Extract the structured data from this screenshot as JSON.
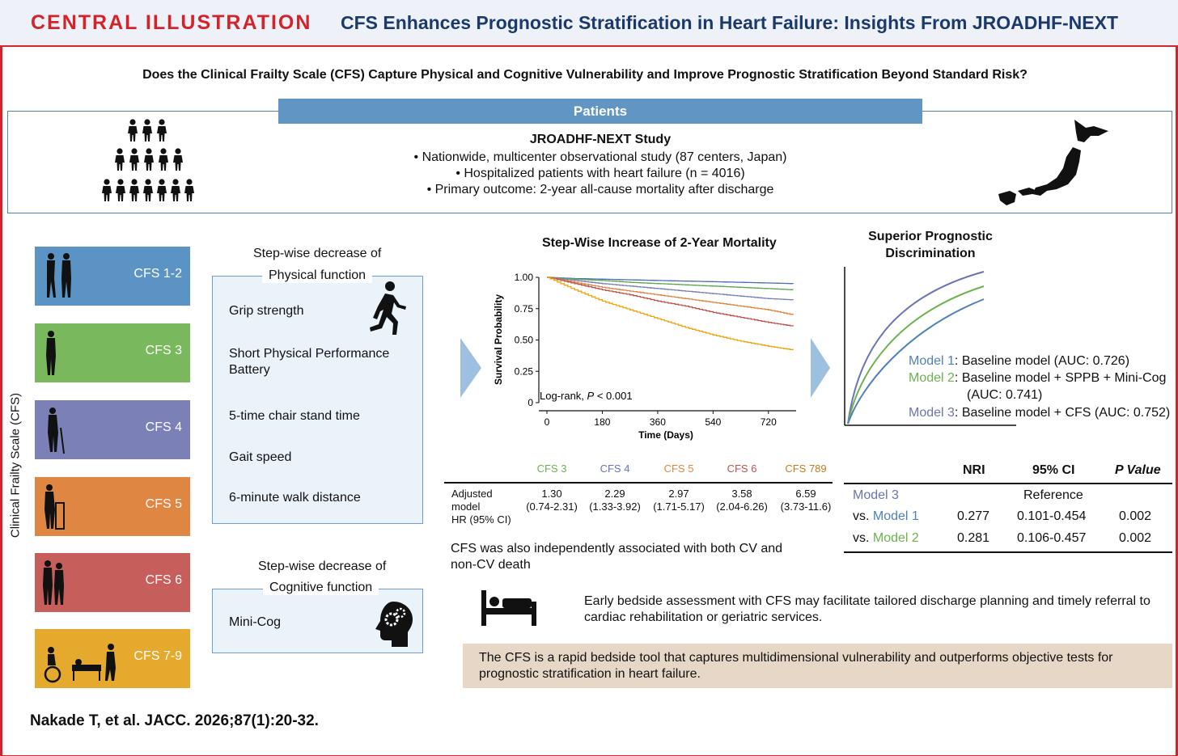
{
  "header": {
    "label": "CENTRAL ILLUSTRATION",
    "title": "CFS Enhances Prognostic Stratification in Heart Failure: Insights From JROADHF-NEXT"
  },
  "question": "Does the Clinical Frailty Scale (CFS) Capture Physical and Cognitive Vulnerability and Improve Prognostic Stratification Beyond Standard Risk?",
  "patients": {
    "bar_label": "Patients",
    "study_title": "JROADHF-NEXT Study",
    "lines": [
      "• Nationwide, multicenter observational study (87 centers, Japan)",
      "• Hospitalized patients with heart failure (n = 4016)",
      "• Primary outcome: 2-year all-cause mortality after discharge"
    ]
  },
  "cfs_axis_label": "Clinical Frailty Scale (CFS)",
  "cfs_levels": [
    {
      "label": "CFS 1-2",
      "color": "#5b94c4"
    },
    {
      "label": "CFS 3",
      "color": "#7ab85d"
    },
    {
      "label": "CFS 4",
      "color": "#7b80b7"
    },
    {
      "label": "CFS 5",
      "color": "#e08643"
    },
    {
      "label": "CFS 6",
      "color": "#c65f5b"
    },
    {
      "label": "CFS 7-9",
      "color": "#e5a92e"
    }
  ],
  "physical": {
    "title_line1": "Step-wise decrease of",
    "title_line2": "Physical function",
    "items": [
      "Grip strength",
      "Short Physical Performance",
      "Battery",
      "5-time chair stand time",
      "Gait speed",
      "6-minute walk distance"
    ]
  },
  "cognitive": {
    "title_line1": "Step-wise decrease of",
    "title_line2": "Cognitive function",
    "items": [
      "Mini-Cog"
    ]
  },
  "km": {
    "title": "Step-Wise Increase of 2-Year Mortality",
    "annotation_prefix": "Log-rank, ",
    "annotation_p": "P",
    "annotation_suffix": " < 0.001"
  },
  "chart_data": {
    "type": "line",
    "title": "Step-Wise Increase of 2-Year Mortality",
    "xlabel": "Time (Days)",
    "ylabel": "Survival Probability",
    "xlim": [
      0,
      810
    ],
    "ylim": [
      0,
      1.0
    ],
    "x_ticks": [
      "0",
      "180",
      "360",
      "540",
      "720"
    ],
    "y_ticks": [
      "0",
      "0.25",
      "0.50",
      "0.75",
      "1.00"
    ],
    "x": [
      0,
      90,
      180,
      270,
      360,
      450,
      540,
      630,
      720,
      800
    ],
    "series": [
      {
        "name": "CFS 1-2",
        "color": "#4f6fb5",
        "values": [
          1.0,
          0.99,
          0.985,
          0.98,
          0.975,
          0.97,
          0.965,
          0.96,
          0.955,
          0.95
        ]
      },
      {
        "name": "CFS 3",
        "color": "#59a84a",
        "values": [
          1.0,
          0.985,
          0.975,
          0.96,
          0.95,
          0.94,
          0.93,
          0.92,
          0.91,
          0.9
        ]
      },
      {
        "name": "CFS 4",
        "color": "#7a7fb5",
        "values": [
          1.0,
          0.975,
          0.95,
          0.93,
          0.91,
          0.89,
          0.87,
          0.85,
          0.83,
          0.82
        ]
      },
      {
        "name": "CFS 5",
        "color": "#e0853e",
        "values": [
          1.0,
          0.96,
          0.92,
          0.89,
          0.86,
          0.83,
          0.8,
          0.77,
          0.74,
          0.7
        ]
      },
      {
        "name": "CFS 6",
        "color": "#c0504d",
        "values": [
          1.0,
          0.95,
          0.9,
          0.86,
          0.81,
          0.77,
          0.72,
          0.68,
          0.64,
          0.61
        ]
      },
      {
        "name": "CFS 7-9",
        "color": "#f0a30a",
        "values": [
          1.0,
          0.9,
          0.81,
          0.74,
          0.67,
          0.6,
          0.54,
          0.49,
          0.45,
          0.42
        ]
      }
    ]
  },
  "hr_table": {
    "row_label": [
      "Adjusted",
      "model",
      "HR (95% CI)"
    ],
    "columns": [
      {
        "head": "CFS 3",
        "color": "#6cb24f",
        "hr": "1.30",
        "ci": "(0.74-2.31)"
      },
      {
        "head": "CFS 4",
        "color": "#6c73b3",
        "hr": "2.29",
        "ci": "(1.33-3.92)"
      },
      {
        "head": "CFS 5",
        "color": "#e0853e",
        "hr": "2.97",
        "ci": "(1.71-5.17)"
      },
      {
        "head": "CFS 6",
        "color": "#c0504d",
        "hr": "3.58",
        "ci": "(2.04-6.26)"
      },
      {
        "head": "CFS 789",
        "color": "#c87a1c",
        "hr": "6.59",
        "ci": "(3.73-11.6)"
      }
    ]
  },
  "cv_text": "CFS was also independently associated with both CV and non-CV death",
  "auc": {
    "title_line1": "Superior Prognostic",
    "title_line2": "Discrimination",
    "models": [
      {
        "name": "Model 1",
        "text": ": Baseline model (AUC: 0.726)",
        "color": "#4f81b9"
      },
      {
        "name": "Model 2",
        "text": ": Baseline model + SPPB + Mini-Cog",
        "text2": "(AUC: 0.741)",
        "color": "#6cb24f"
      },
      {
        "name": "Model 3",
        "text": ": Baseline model + CFS (AUC: 0.752)",
        "color": "#6c73b3"
      }
    ]
  },
  "nri": {
    "headers": {
      "nri": "NRI",
      "ci": "95% CI",
      "p": "P Value"
    },
    "model3": "Model 3",
    "reference": "Reference",
    "rows": [
      {
        "prefix": "vs. ",
        "model": "Model 1",
        "color": "#4f81b9",
        "nri": "0.277",
        "ci": "0.101-0.454",
        "p": "0.002"
      },
      {
        "prefix": "vs. ",
        "model": "Model 2",
        "color": "#6cb24f",
        "nri": "0.281",
        "ci": "0.106-0.457",
        "p": "0.002"
      }
    ]
  },
  "bedside_text": "Early bedside assessment with CFS may facilitate tailored discharge planning and timely referral to cardiac rehabilitation or geriatric services.",
  "conclusion": "The CFS is a rapid bedside tool that captures multidimensional vulnerability and outperforms objective tests for prognostic stratification in heart failure.",
  "citation": "Nakade T, et al. JACC. 2026;87(1):20-32."
}
